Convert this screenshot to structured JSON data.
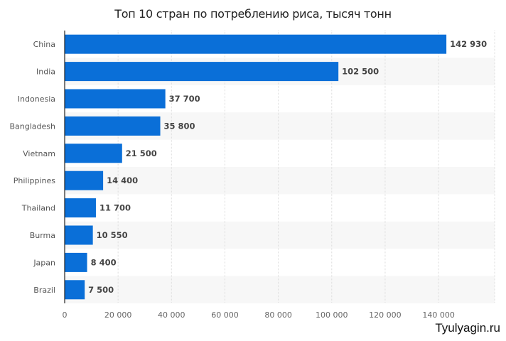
{
  "chart_data": {
    "type": "bar",
    "orientation": "horizontal",
    "title": "Топ 10 стран по потреблению риса, тысяч тонн",
    "categories": [
      "China",
      "India",
      "Indonesia",
      "Bangladesh",
      "Vietnam",
      "Philippines",
      "Thailand",
      "Burma",
      "Japan",
      "Brazil"
    ],
    "values": [
      142930,
      102500,
      37700,
      35800,
      21500,
      14400,
      11700,
      10550,
      8400,
      7500
    ],
    "value_labels": [
      "142 930",
      "102 500",
      "37 700",
      "35 800",
      "21 500",
      "14 400",
      "11 700",
      "10 550",
      "8 400",
      "7 500"
    ],
    "xticks": [
      0,
      20000,
      40000,
      60000,
      80000,
      100000,
      120000,
      140000
    ],
    "xtick_labels": [
      "0",
      "20 000",
      "40 000",
      "60 000",
      "80 000",
      "100 000",
      "120 000",
      "140 000"
    ],
    "xlim": [
      0,
      161000
    ],
    "xlabel": "",
    "ylabel": "",
    "grid": true,
    "bar_color": "#0a6fd8",
    "alt_row_color": "#f7f7f7"
  },
  "watermark": "Tyulyagin.ru"
}
